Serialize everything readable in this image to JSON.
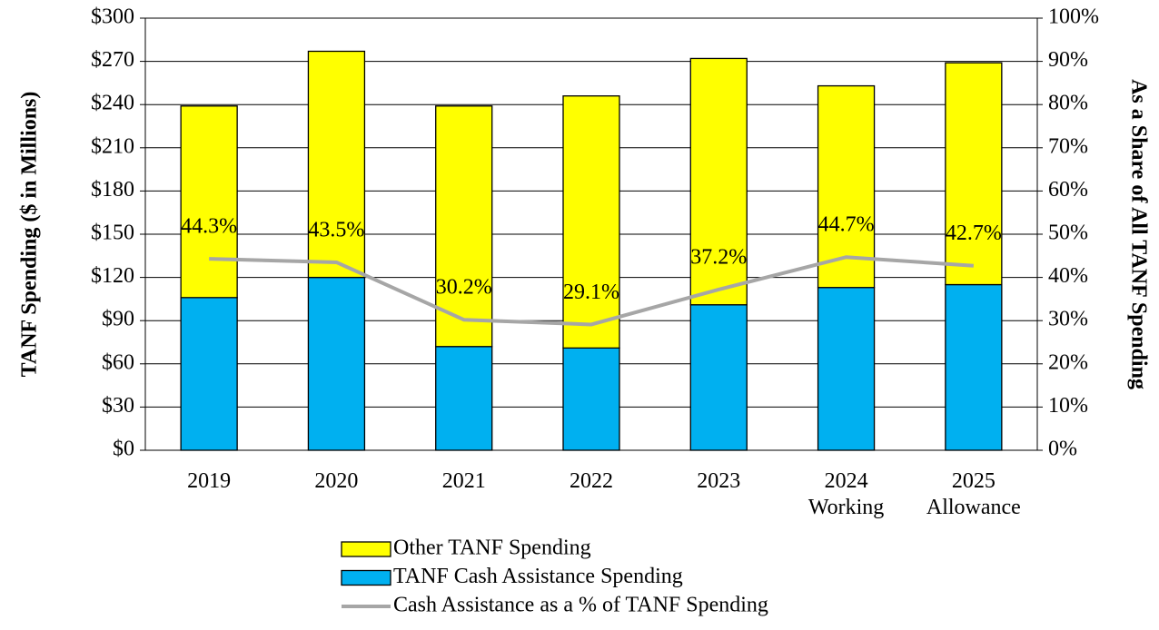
{
  "chart_data": {
    "type": "bar",
    "stacked": true,
    "y_label": "TANF Spending ($ in Millions)",
    "y2_label": "As a Share of All TANF Spending",
    "categories": [
      "2019",
      "2020",
      "2021",
      "2022",
      "2023",
      "2024\nWorking",
      "2025\nAllowance"
    ],
    "series": [
      {
        "name": "Other TANF Spending",
        "type": "bar",
        "color": "#ffff00",
        "values": [
          133,
          157,
          167,
          175,
          171,
          140,
          154
        ]
      },
      {
        "name": "TANF Cash Assistance Spending",
        "type": "bar",
        "color": "#00b0f0",
        "values": [
          106,
          120,
          72,
          71,
          101,
          113,
          115
        ]
      },
      {
        "name": "Cash Assistance as a % of TANF Spending",
        "type": "line",
        "axis": "y2",
        "color": "#a6a6a6",
        "values": [
          44.3,
          43.5,
          30.2,
          29.1,
          37.2,
          44.7,
          42.7
        ],
        "value_labels": [
          "44.3%",
          "43.5%",
          "30.2%",
          "29.1%",
          "37.2%",
          "44.7%",
          "42.7%"
        ]
      }
    ],
    "ylim": [
      0,
      300
    ],
    "yticks": [
      {
        "value": 0,
        "label": "$0"
      },
      {
        "value": 30,
        "label": "$30"
      },
      {
        "value": 60,
        "label": "$60"
      },
      {
        "value": 90,
        "label": "$90"
      },
      {
        "value": 120,
        "label": "$120"
      },
      {
        "value": 150,
        "label": "$150"
      },
      {
        "value": 180,
        "label": "$180"
      },
      {
        "value": 210,
        "label": "$210"
      },
      {
        "value": 240,
        "label": "$240"
      },
      {
        "value": 270,
        "label": "$270"
      },
      {
        "value": 300,
        "label": "$300"
      }
    ],
    "y2lim": [
      0,
      100
    ],
    "y2ticks": [
      {
        "value": 0,
        "label": "0%"
      },
      {
        "value": 10,
        "label": "10%"
      },
      {
        "value": 20,
        "label": "20%"
      },
      {
        "value": 30,
        "label": "30%"
      },
      {
        "value": 40,
        "label": "40%"
      },
      {
        "value": 50,
        "label": "50%"
      },
      {
        "value": 60,
        "label": "60%"
      },
      {
        "value": 70,
        "label": "70%"
      },
      {
        "value": 80,
        "label": "80%"
      },
      {
        "value": 90,
        "label": "90%"
      },
      {
        "value": 100,
        "label": "100%"
      }
    ],
    "grid": true,
    "legend": "bottom"
  }
}
